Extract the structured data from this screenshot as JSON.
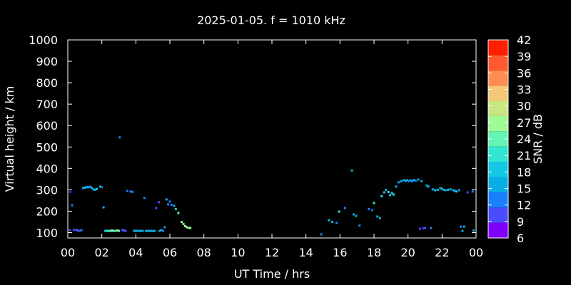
{
  "chart_data": {
    "type": "scatter",
    "title": "2025-01-05. f = 1010 kHz",
    "xlabel": "UT Time / hrs",
    "ylabel": "Virtual height / km",
    "xlim": [
      0,
      24
    ],
    "ylim": [
      75,
      1000
    ],
    "x_ticks": [
      "00",
      "02",
      "04",
      "06",
      "08",
      "10",
      "12",
      "14",
      "16",
      "18",
      "20",
      "22",
      "00"
    ],
    "y_ticks": [
      100,
      200,
      300,
      400,
      500,
      600,
      700,
      800,
      900,
      1000
    ],
    "grid": false,
    "colorbar": {
      "label": "SNR / dB",
      "ticks": [
        6,
        9,
        12,
        15,
        18,
        21,
        24,
        27,
        30,
        33,
        36,
        39,
        42
      ],
      "colors": [
        "#8000ff",
        "#4b4bff",
        "#1a7fff",
        "#0aaee6",
        "#14c8e6",
        "#32e6d2",
        "#64f5b4",
        "#a0fa96",
        "#c8e682",
        "#f5c878",
        "#ff8c50",
        "#ff5a2d",
        "#ff1e00"
      ]
    },
    "points": [
      {
        "x": 0.12,
        "y": 112,
        "snr": 10
      },
      {
        "x": 0.15,
        "y": 290,
        "snr": 8
      },
      {
        "x": 0.25,
        "y": 228,
        "snr": 12
      },
      {
        "x": 0.35,
        "y": 114,
        "snr": 11
      },
      {
        "x": 0.5,
        "y": 112,
        "snr": 12
      },
      {
        "x": 0.6,
        "y": 110,
        "snr": 11
      },
      {
        "x": 0.7,
        "y": 108,
        "snr": 9
      },
      {
        "x": 0.8,
        "y": 112,
        "snr": 12
      },
      {
        "x": 0.9,
        "y": 308,
        "snr": 16
      },
      {
        "x": 1.0,
        "y": 310,
        "snr": 15
      },
      {
        "x": 1.1,
        "y": 312,
        "snr": 16
      },
      {
        "x": 1.2,
        "y": 312,
        "snr": 15
      },
      {
        "x": 1.3,
        "y": 314,
        "snr": 16
      },
      {
        "x": 1.4,
        "y": 310,
        "snr": 17
      },
      {
        "x": 1.5,
        "y": 302,
        "snr": 16
      },
      {
        "x": 1.6,
        "y": 300,
        "snr": 17
      },
      {
        "x": 1.7,
        "y": 304,
        "snr": 18
      },
      {
        "x": 1.9,
        "y": 315,
        "snr": 15
      },
      {
        "x": 2.0,
        "y": 312,
        "snr": 14
      },
      {
        "x": 2.1,
        "y": 218,
        "snr": 16
      },
      {
        "x": 2.2,
        "y": 108,
        "snr": 18
      },
      {
        "x": 2.3,
        "y": 108,
        "snr": 20
      },
      {
        "x": 2.4,
        "y": 108,
        "snr": 22
      },
      {
        "x": 2.5,
        "y": 108,
        "snr": 24
      },
      {
        "x": 2.6,
        "y": 110,
        "snr": 26
      },
      {
        "x": 2.7,
        "y": 108,
        "snr": 24
      },
      {
        "x": 2.8,
        "y": 108,
        "snr": 22
      },
      {
        "x": 2.9,
        "y": 110,
        "snr": 27
      },
      {
        "x": 3.0,
        "y": 108,
        "snr": 24
      },
      {
        "x": 3.05,
        "y": 545,
        "snr": 12
      },
      {
        "x": 3.2,
        "y": 112,
        "snr": 10
      },
      {
        "x": 3.3,
        "y": 110,
        "snr": 9
      },
      {
        "x": 3.4,
        "y": 108,
        "snr": 10
      },
      {
        "x": 3.5,
        "y": 295,
        "snr": 12
      },
      {
        "x": 3.7,
        "y": 292,
        "snr": 14
      },
      {
        "x": 3.8,
        "y": 290,
        "snr": 13
      },
      {
        "x": 3.9,
        "y": 108,
        "snr": 16
      },
      {
        "x": 4.0,
        "y": 108,
        "snr": 15
      },
      {
        "x": 4.1,
        "y": 108,
        "snr": 16
      },
      {
        "x": 4.2,
        "y": 108,
        "snr": 17
      },
      {
        "x": 4.3,
        "y": 108,
        "snr": 15
      },
      {
        "x": 4.4,
        "y": 108,
        "snr": 16
      },
      {
        "x": 4.5,
        "y": 262,
        "snr": 14
      },
      {
        "x": 4.6,
        "y": 108,
        "snr": 15
      },
      {
        "x": 4.7,
        "y": 108,
        "snr": 16
      },
      {
        "x": 4.8,
        "y": 108,
        "snr": 17
      },
      {
        "x": 4.9,
        "y": 108,
        "snr": 16
      },
      {
        "x": 5.0,
        "y": 108,
        "snr": 15
      },
      {
        "x": 5.1,
        "y": 108,
        "snr": 16
      },
      {
        "x": 5.2,
        "y": 215,
        "snr": 10
      },
      {
        "x": 5.35,
        "y": 242,
        "snr": 11
      },
      {
        "x": 5.4,
        "y": 108,
        "snr": 15
      },
      {
        "x": 5.5,
        "y": 112,
        "snr": 16
      },
      {
        "x": 5.6,
        "y": 108,
        "snr": 14
      },
      {
        "x": 5.7,
        "y": 125,
        "snr": 17
      },
      {
        "x": 5.8,
        "y": 255,
        "snr": 15
      },
      {
        "x": 5.9,
        "y": 232,
        "snr": 14
      },
      {
        "x": 6.0,
        "y": 245,
        "snr": 12
      },
      {
        "x": 6.1,
        "y": 230,
        "snr": 14
      },
      {
        "x": 6.25,
        "y": 225,
        "snr": 15
      },
      {
        "x": 6.35,
        "y": 210,
        "snr": 18
      },
      {
        "x": 6.5,
        "y": 192,
        "snr": 24
      },
      {
        "x": 6.7,
        "y": 150,
        "snr": 26
      },
      {
        "x": 6.8,
        "y": 140,
        "snr": 27
      },
      {
        "x": 6.9,
        "y": 130,
        "snr": 28
      },
      {
        "x": 7.0,
        "y": 125,
        "snr": 27
      },
      {
        "x": 7.1,
        "y": 122,
        "snr": 25
      },
      {
        "x": 7.2,
        "y": 122,
        "snr": 26
      },
      {
        "x": 14.9,
        "y": 92,
        "snr": 12
      },
      {
        "x": 15.35,
        "y": 158,
        "snr": 16
      },
      {
        "x": 15.55,
        "y": 150,
        "snr": 15
      },
      {
        "x": 15.8,
        "y": 146,
        "snr": 13
      },
      {
        "x": 15.95,
        "y": 198,
        "snr": 22
      },
      {
        "x": 16.3,
        "y": 215,
        "snr": 14
      },
      {
        "x": 16.7,
        "y": 390,
        "snr": 15
      },
      {
        "x": 16.8,
        "y": 185,
        "snr": 16
      },
      {
        "x": 16.95,
        "y": 178,
        "snr": 15
      },
      {
        "x": 17.15,
        "y": 133,
        "snr": 14
      },
      {
        "x": 17.7,
        "y": 210,
        "snr": 14
      },
      {
        "x": 17.9,
        "y": 205,
        "snr": 12
      },
      {
        "x": 18.0,
        "y": 238,
        "snr": 22
      },
      {
        "x": 18.2,
        "y": 175,
        "snr": 15
      },
      {
        "x": 18.35,
        "y": 168,
        "snr": 16
      },
      {
        "x": 18.45,
        "y": 270,
        "snr": 20
      },
      {
        "x": 18.6,
        "y": 288,
        "snr": 18
      },
      {
        "x": 18.7,
        "y": 300,
        "snr": 17
      },
      {
        "x": 18.85,
        "y": 290,
        "snr": 22
      },
      {
        "x": 18.95,
        "y": 275,
        "snr": 19
      },
      {
        "x": 19.05,
        "y": 285,
        "snr": 18
      },
      {
        "x": 19.15,
        "y": 278,
        "snr": 20
      },
      {
        "x": 19.3,
        "y": 315,
        "snr": 16
      },
      {
        "x": 19.45,
        "y": 335,
        "snr": 15
      },
      {
        "x": 19.6,
        "y": 340,
        "snr": 16
      },
      {
        "x": 19.75,
        "y": 345,
        "snr": 17
      },
      {
        "x": 19.85,
        "y": 342,
        "snr": 15
      },
      {
        "x": 19.95,
        "y": 345,
        "snr": 16
      },
      {
        "x": 20.05,
        "y": 340,
        "snr": 14
      },
      {
        "x": 20.15,
        "y": 344,
        "snr": 15
      },
      {
        "x": 20.25,
        "y": 340,
        "snr": 16
      },
      {
        "x": 20.35,
        "y": 346,
        "snr": 15
      },
      {
        "x": 20.45,
        "y": 342,
        "snr": 14
      },
      {
        "x": 20.6,
        "y": 348,
        "snr": 15
      },
      {
        "x": 20.7,
        "y": 118,
        "snr": 11
      },
      {
        "x": 20.8,
        "y": 340,
        "snr": 16
      },
      {
        "x": 20.9,
        "y": 120,
        "snr": 10
      },
      {
        "x": 21.0,
        "y": 122,
        "snr": 11
      },
      {
        "x": 21.1,
        "y": 320,
        "snr": 16
      },
      {
        "x": 21.2,
        "y": 315,
        "snr": 17
      },
      {
        "x": 21.35,
        "y": 122,
        "snr": 12
      },
      {
        "x": 21.45,
        "y": 302,
        "snr": 16
      },
      {
        "x": 21.6,
        "y": 298,
        "snr": 18
      },
      {
        "x": 21.75,
        "y": 300,
        "snr": 17
      },
      {
        "x": 21.9,
        "y": 308,
        "snr": 16
      },
      {
        "x": 22.0,
        "y": 305,
        "snr": 17
      },
      {
        "x": 22.1,
        "y": 300,
        "snr": 16
      },
      {
        "x": 22.2,
        "y": 298,
        "snr": 17
      },
      {
        "x": 22.35,
        "y": 300,
        "snr": 18
      },
      {
        "x": 22.5,
        "y": 302,
        "snr": 17
      },
      {
        "x": 22.65,
        "y": 298,
        "snr": 16
      },
      {
        "x": 22.75,
        "y": 295,
        "snr": 17
      },
      {
        "x": 22.85,
        "y": 292,
        "snr": 18
      },
      {
        "x": 23.0,
        "y": 298,
        "snr": 16
      },
      {
        "x": 23.1,
        "y": 128,
        "snr": 14
      },
      {
        "x": 23.2,
        "y": 108,
        "snr": 15
      },
      {
        "x": 23.3,
        "y": 128,
        "snr": 16
      },
      {
        "x": 23.5,
        "y": 288,
        "snr": 10
      },
      {
        "x": 23.8,
        "y": 292,
        "snr": 14
      },
      {
        "x": 23.85,
        "y": 110,
        "snr": 16
      }
    ]
  }
}
